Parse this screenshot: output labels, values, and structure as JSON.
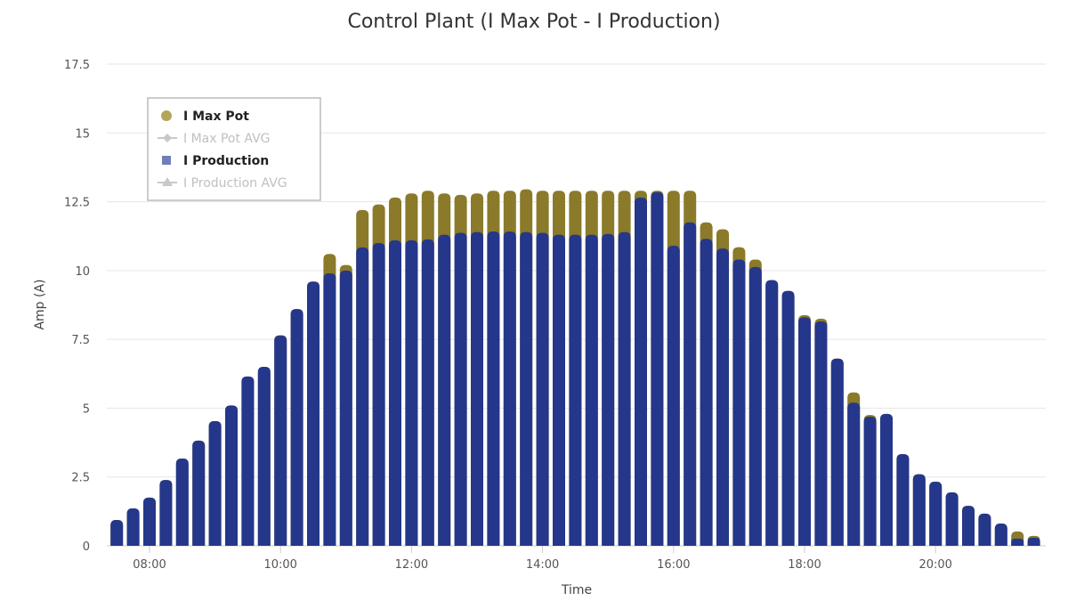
{
  "chart_data": {
    "type": "bar",
    "title": "Control Plant (I Max Pot - I Production)",
    "xlabel": "Time",
    "ylabel": "Amp (A)",
    "ylim": [
      0,
      17.5
    ],
    "yticks": [
      "0",
      "2.5",
      "5",
      "7.5",
      "10",
      "12.5",
      "15",
      "17.5"
    ],
    "xticks": [
      "08:00",
      "10:00",
      "12:00",
      "14:00",
      "16:00",
      "18:00",
      "20:00"
    ],
    "grid": "horizontal",
    "legend_placement": "top-left",
    "legend": [
      {
        "name": "I Max Pot",
        "symbol": "circle",
        "active": true
      },
      {
        "name": "I Max Pot AVG",
        "symbol": "diamond-line",
        "active": false
      },
      {
        "name": "I Production",
        "symbol": "square",
        "active": true
      },
      {
        "name": "I Production AVG",
        "symbol": "triangle-line",
        "active": false
      }
    ],
    "colors": {
      "I Max Pot": "#8a7a2a",
      "I Production": "#25378a",
      "inactive": "#c8c8c8",
      "grid": "#e6e6e6"
    },
    "x": [
      "07:30",
      "07:45",
      "08:00",
      "08:15",
      "08:30",
      "08:45",
      "09:00",
      "09:15",
      "09:30",
      "09:45",
      "10:00",
      "10:15",
      "10:30",
      "10:45",
      "11:00",
      "11:15",
      "11:30",
      "11:45",
      "12:00",
      "12:15",
      "12:30",
      "12:45",
      "13:00",
      "13:15",
      "13:30",
      "13:45",
      "14:00",
      "14:15",
      "14:30",
      "14:45",
      "15:00",
      "15:15",
      "15:30",
      "15:45",
      "16:00",
      "16:15",
      "16:30",
      "16:45",
      "17:00",
      "17:15",
      "17:30",
      "17:45",
      "18:00",
      "18:15",
      "18:30",
      "18:45",
      "19:00",
      "19:15",
      "19:30",
      "19:45",
      "20:00",
      "20:15",
      "20:30",
      "20:45",
      "21:00",
      "21:15",
      "21:30"
    ],
    "series": [
      {
        "name": "I Max Pot",
        "values": [
          0.94,
          1.36,
          1.75,
          2.39,
          3.17,
          3.82,
          4.53,
          5.1,
          6.15,
          6.5,
          7.65,
          8.6,
          9.6,
          10.6,
          10.2,
          12.2,
          12.4,
          12.65,
          12.8,
          12.9,
          12.8,
          12.75,
          12.8,
          12.9,
          12.9,
          12.95,
          12.9,
          12.9,
          12.9,
          12.9,
          12.9,
          12.9,
          12.9,
          12.9,
          12.9,
          12.9,
          11.75,
          11.5,
          10.85,
          10.4,
          9.65,
          9.26,
          8.38,
          8.25,
          6.8,
          5.57,
          4.75,
          4.79,
          3.33,
          2.6,
          2.33,
          1.94,
          1.45,
          1.17,
          0.81,
          0.52,
          0.36
        ]
      },
      {
        "name": "I Production",
        "values": [
          0.94,
          1.36,
          1.75,
          2.39,
          3.17,
          3.82,
          4.53,
          5.1,
          6.15,
          6.5,
          7.64,
          8.6,
          9.6,
          9.9,
          10.0,
          10.84,
          11.0,
          11.1,
          11.1,
          11.13,
          11.3,
          11.37,
          11.4,
          11.42,
          11.42,
          11.4,
          11.37,
          11.3,
          11.3,
          11.3,
          11.33,
          11.4,
          12.65,
          12.85,
          10.9,
          11.75,
          11.15,
          10.8,
          10.4,
          10.13,
          9.65,
          9.26,
          8.3,
          8.15,
          6.8,
          5.2,
          4.69,
          4.79,
          3.33,
          2.6,
          2.33,
          1.94,
          1.45,
          1.17,
          0.81,
          0.26,
          0.29
        ]
      }
    ]
  }
}
